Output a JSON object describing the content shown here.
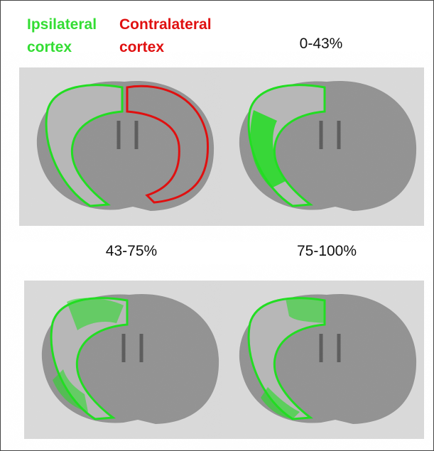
{
  "legend": {
    "ipsilateral": [
      "Ipsilateral",
      "cortex"
    ],
    "contralateral": [
      "Contralateral",
      "cortex"
    ]
  },
  "panels": [
    {
      "label": "0-43%"
    },
    {
      "label": "43-75%"
    },
    {
      "label": "75-100%"
    }
  ]
}
